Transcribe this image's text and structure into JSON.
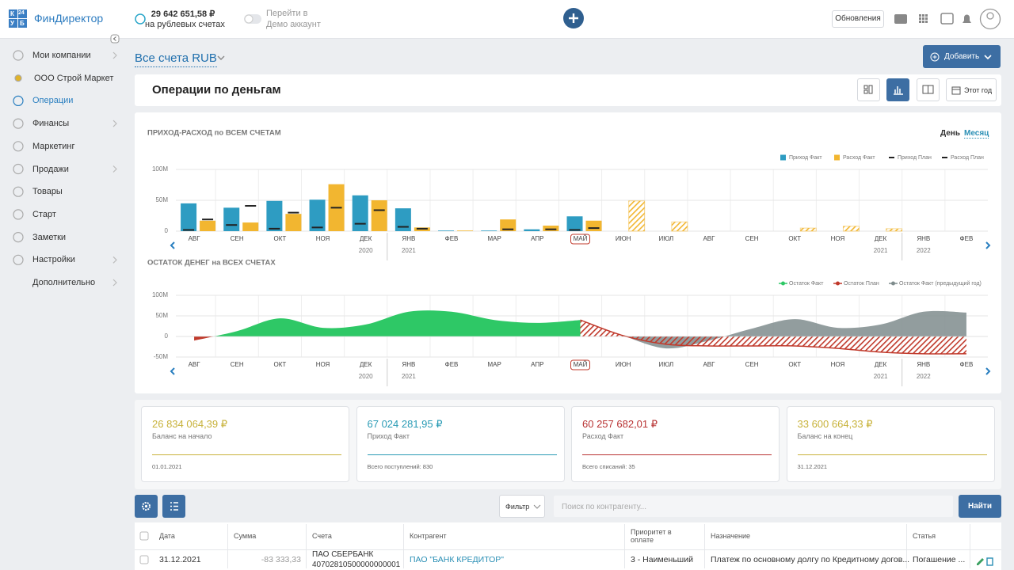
{
  "header": {
    "logo_letters": [
      "К",
      "24",
      "У",
      "Б"
    ],
    "logo_text": "ФинДиректор",
    "balance": "29 642 651,58 ₽",
    "balance_caption": "на рублевых счетах",
    "demo_line1": "Перейти в",
    "demo_line2": "Демо аккаунт",
    "updates": "Обновления"
  },
  "sidebar": {
    "items": [
      "Мои компании",
      "ООО Строй Маркет",
      "Операции",
      "Финансы",
      "Маркетинг",
      "Продажи",
      "Товары",
      "Старт",
      "Заметки",
      "Настройки",
      "Дополнительно"
    ]
  },
  "page": {
    "accounts": "Все счета RUB",
    "add": "Добавить",
    "title": "Операции по деньгам",
    "period": "Этот год",
    "day": "День",
    "month": "Месяц"
  },
  "chart_data": [
    {
      "type": "bar",
      "title": "ПРИХОД-РАСХОД по ВСЕМ СЧЕТАМ",
      "categories": [
        "АВГ",
        "СЕН",
        "ОКТ",
        "НОЯ",
        "ДЕК",
        "ЯНВ",
        "ФЕВ",
        "МАР",
        "АПР",
        "МАЙ",
        "ИЮН",
        "ИЮЛ",
        "АВГ",
        "СЕН",
        "ОКТ",
        "НОЯ",
        "ДЕК",
        "ЯНВ",
        "ФЕВ"
      ],
      "year_labels": [
        "2020",
        "2021",
        "2021",
        "2022"
      ],
      "series": [
        {
          "name": "Приход Факт",
          "color": "#2e9cc2",
          "values": [
            45,
            38,
            49,
            51,
            58,
            37,
            1,
            1,
            3,
            24,
            null,
            null,
            null,
            null,
            null,
            null,
            null,
            null,
            null
          ]
        },
        {
          "name": "Расход Факт",
          "color": "#f2b630",
          "values": [
            17,
            14,
            28,
            76,
            50,
            6,
            1,
            19,
            9,
            17,
            null,
            null,
            null,
            null,
            null,
            null,
            null,
            null,
            null
          ]
        },
        {
          "name": "Приход План",
          "color": "#222222",
          "values": [
            2,
            10,
            4,
            6,
            12,
            7,
            null,
            null,
            null,
            2,
            null,
            null,
            null,
            null,
            null,
            null,
            null,
            null,
            null
          ]
        },
        {
          "name": "Расход План",
          "color": "#222222",
          "values": [
            19,
            41,
            30,
            38,
            34,
            4,
            null,
            3,
            3,
            5,
            49,
            15,
            null,
            null,
            5,
            8,
            4,
            null,
            null
          ]
        }
      ],
      "ylim": [
        0,
        100
      ],
      "yticks": [
        0,
        {
          "value": 50,
          "label": "50M"
        },
        {
          "value": 100,
          "label": "100M"
        }
      ],
      "grid": true
    },
    {
      "type": "area",
      "title": "ОСТАТОК ДЕНЕГ на ВСЕХ СЧЕТАХ",
      "categories": [
        "АВГ",
        "СЕН",
        "ОКТ",
        "НОЯ",
        "ДЕК",
        "ЯНВ",
        "ФЕВ",
        "МАР",
        "АПР",
        "МАЙ",
        "ИЮН",
        "ИЮЛ",
        "АВГ",
        "СЕН",
        "ОКТ",
        "НОЯ",
        "ДЕК",
        "ЯНВ",
        "ФЕВ"
      ],
      "year_labels": [
        "2020",
        "2021",
        "2021",
        "2022"
      ],
      "series": [
        {
          "name": "Остаток Факт",
          "color": "#2ec866",
          "values": [
            -10,
            13,
            44,
            21,
            29,
            60,
            60,
            40,
            33,
            40,
            null,
            null,
            null,
            null,
            null,
            null,
            null,
            null,
            null
          ]
        },
        {
          "name": "Остаток План",
          "color": "#c0392b",
          "pattern": "hatched",
          "values": [
            null,
            null,
            null,
            null,
            null,
            null,
            null,
            null,
            null,
            40,
            2,
            -19,
            -23,
            -23,
            -23,
            -29,
            -38,
            -42,
            -42
          ]
        },
        {
          "name": "Остаток Факт (предыдущий год)",
          "color": "#7f8c8d",
          "values": [
            null,
            null,
            null,
            null,
            null,
            null,
            null,
            null,
            null,
            null,
            2,
            -29,
            -10,
            19,
            42,
            21,
            29,
            60,
            58
          ]
        }
      ],
      "ylim": [
        -50,
        100
      ],
      "yticks": [
        {
          "value": -50,
          "label": "-50M"
        },
        0,
        {
          "value": 50,
          "label": "50M"
        },
        {
          "value": 100,
          "label": "100M"
        }
      ],
      "grid": true
    }
  ],
  "cards": [
    {
      "value": "26 834 064,39 ₽",
      "label": "Баланс на начало",
      "note": "01.01.2021",
      "color": "#c8b23a"
    },
    {
      "value": "67 024 281,95 ₽",
      "label": "Приход Факт",
      "note": "Всего поступлений: 830",
      "color": "#2a9bb5"
    },
    {
      "value": "60 257 682,01 ₽",
      "label": "Расход Факт",
      "note": "Всего списаний: 35",
      "color": "#b83232"
    },
    {
      "value": "33 600 664,33 ₽",
      "label": "Баланс на конец",
      "note": "31.12.2021",
      "color": "#c8b23a"
    }
  ],
  "toolbar": {
    "filter": "Фильтр",
    "search_placeholder": "Поиск по контрагенту...",
    "find": "Найти"
  },
  "table": {
    "columns": [
      "Дата",
      "Сумма",
      "Счета",
      "Контрагент",
      "Приоритет в оплате",
      "Назначение",
      "Статья"
    ],
    "rows": [
      [
        "31.12.2021",
        "-83 333,33",
        [
          "ПАО СБЕРБАНК",
          "40702810500000000001"
        ],
        "ПАО \"БАНК КРЕДИТОР\"",
        "3 - Наименьший",
        "Платеж по основному долгу по Кредитному догов...",
        "Погашение ..."
      ]
    ]
  }
}
